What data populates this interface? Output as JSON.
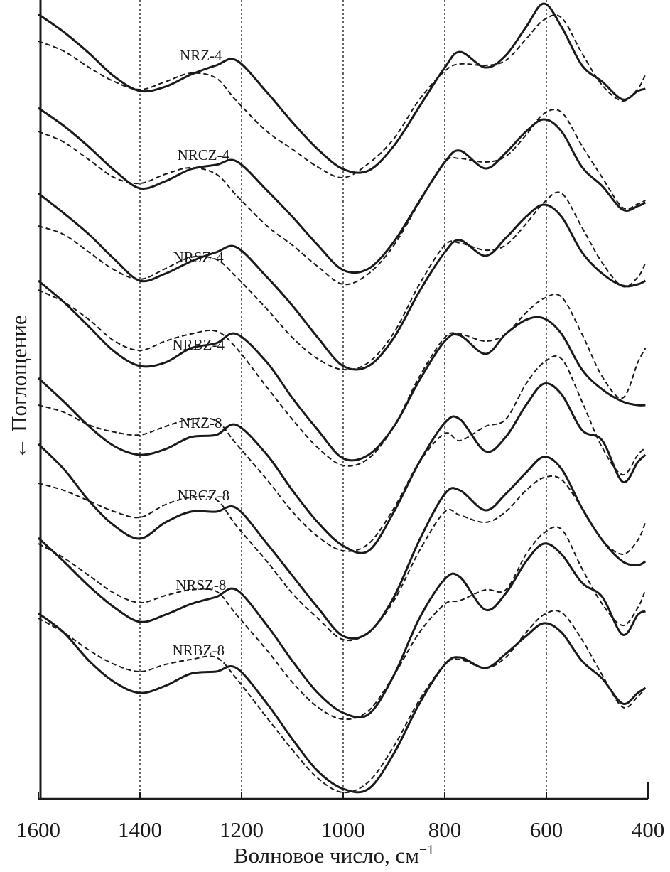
{
  "chart_data": {
    "type": "line",
    "xlabel": "Волновое число, см",
    "xlabel_superscript": "−1",
    "ylabel": "Поглощение",
    "ylabel_arrow": "←",
    "xlim": [
      1600,
      400
    ],
    "x_reversed": true,
    "ylim": [
      0,
      1124
    ],
    "y_inverted": true,
    "y_units": "arbitrary",
    "x_ticks": [
      "1600",
      "1400",
      "1200",
      "1000",
      "800",
      "600",
      "400"
    ],
    "reference_lines": [
      1400,
      1200,
      1000,
      800,
      600
    ],
    "grid": false,
    "legend": "none",
    "colors": {
      "line": "#1a1a1a",
      "reference": "#333333"
    },
    "x": [
      1600,
      1550,
      1500,
      1450,
      1400,
      1350,
      1300,
      1250,
      1210,
      1150,
      1100,
      1050,
      1000,
      950,
      900,
      850,
      800,
      770,
      720,
      680,
      640,
      605,
      570,
      530,
      490,
      450,
      420,
      405
    ],
    "spectra": [
      {
        "label": "NRZ-4",
        "solid": [
          20,
          45,
          75,
          108,
          128,
          122,
          105,
          92,
          85,
          130,
          172,
          210,
          238,
          240,
          205,
          150,
          95,
          73,
          95,
          78,
          38,
          5,
          38,
          92,
          115,
          140,
          128,
          125
        ],
        "dashed": [
          58,
          72,
          95,
          115,
          126,
          115,
          103,
          110,
          142,
          185,
          210,
          235,
          250,
          230,
          195,
          140,
          100,
          90,
          92,
          85,
          55,
          28,
          25,
          75,
          120,
          142,
          125,
          105
        ]
      },
      {
        "label": "NRCZ-4",
        "solid": [
          152,
          177,
          207,
          240,
          265,
          255,
          238,
          232,
          227,
          268,
          305,
          345,
          380,
          378,
          340,
          283,
          228,
          212,
          237,
          215,
          185,
          168,
          185,
          235,
          262,
          295,
          290,
          285
        ],
        "dashed": [
          185,
          200,
          225,
          250,
          258,
          245,
          236,
          245,
          275,
          318,
          345,
          375,
          400,
          385,
          345,
          285,
          228,
          223,
          228,
          220,
          190,
          160,
          158,
          205,
          250,
          292,
          287,
          282
        ]
      },
      {
        "label": "NRSZ-4",
        "solid": [
          272,
          300,
          330,
          365,
          395,
          385,
          368,
          355,
          348,
          390,
          430,
          475,
          515,
          515,
          475,
          410,
          355,
          338,
          360,
          335,
          305,
          288,
          305,
          355,
          385,
          402,
          400,
          395
        ],
        "dashed": [
          318,
          330,
          355,
          380,
          393,
          378,
          362,
          365,
          390,
          435,
          475,
          505,
          520,
          510,
          468,
          400,
          345,
          342,
          352,
          345,
          315,
          285,
          272,
          320,
          370,
          403,
          390,
          370
        ]
      },
      {
        "label": "NRBZ-4",
        "solid": [
          395,
          425,
          460,
          495,
          515,
          510,
          490,
          483,
          470,
          510,
          560,
          605,
          645,
          640,
          600,
          535,
          480,
          472,
          498,
          470,
          450,
          448,
          470,
          520,
          548,
          565,
          570,
          570
        ],
        "dashed": [
          408,
          425,
          450,
          480,
          493,
          480,
          470,
          466,
          490,
          545,
          590,
          630,
          655,
          645,
          600,
          530,
          475,
          470,
          480,
          470,
          440,
          420,
          418,
          470,
          530,
          560,
          510,
          490
        ]
      },
      {
        "label": "NRZ-8",
        "solid": [
          532,
          565,
          600,
          628,
          640,
          632,
          615,
          612,
          598,
          640,
          690,
          735,
          768,
          775,
          720,
          650,
          595,
          590,
          635,
          615,
          570,
          540,
          555,
          605,
          620,
          678,
          650,
          640
        ],
        "dashed": [
          570,
          580,
          598,
          608,
          612,
          600,
          590,
          592,
          625,
          675,
          720,
          755,
          775,
          765,
          715,
          650,
          610,
          620,
          600,
          590,
          540,
          510,
          505,
          565,
          630,
          668,
          640,
          630
        ]
      },
      {
        "label": "NRCZ-8",
        "solid": [
          625,
          660,
          705,
          740,
          758,
          735,
          720,
          720,
          715,
          765,
          810,
          855,
          895,
          890,
          840,
          760,
          695,
          690,
          718,
          695,
          665,
          643,
          660,
          715,
          760,
          790,
          795,
          790
        ],
        "dashed": [
          680,
          690,
          705,
          720,
          728,
          710,
          700,
          703,
          740,
          790,
          835,
          870,
          900,
          890,
          845,
          775,
          720,
          725,
          735,
          720,
          690,
          672,
          675,
          715,
          760,
          780,
          760,
          735
        ]
      },
      {
        "label": "NRSZ-8",
        "solid": [
          757,
          790,
          825,
          855,
          875,
          865,
          850,
          840,
          830,
          880,
          930,
          975,
          1003,
          1005,
          950,
          870,
          815,
          812,
          858,
          835,
          790,
          765,
          780,
          820,
          840,
          893,
          865,
          860
        ],
        "dashed": [
          765,
          785,
          810,
          835,
          848,
          838,
          830,
          832,
          865,
          915,
          960,
          995,
          1012,
          1000,
          950,
          890,
          850,
          845,
          830,
          830,
          780,
          750,
          745,
          800,
          850,
          880,
          855,
          830
        ]
      },
      {
        "label": "NRBZ-8",
        "solid": [
          863,
          890,
          930,
          960,
          975,
          965,
          948,
          945,
          940,
          990,
          1040,
          1085,
          1110,
          1110,
          1060,
          990,
          935,
          925,
          940,
          920,
          895,
          877,
          890,
          930,
          955,
          990,
          975,
          968
        ],
        "dashed": [
          870,
          890,
          915,
          935,
          945,
          935,
          928,
          925,
          955,
          1010,
          1055,
          1095,
          1115,
          1100,
          1050,
          985,
          935,
          928,
          940,
          925,
          890,
          865,
          862,
          900,
          950,
          995,
          980,
          968
        ]
      }
    ]
  }
}
